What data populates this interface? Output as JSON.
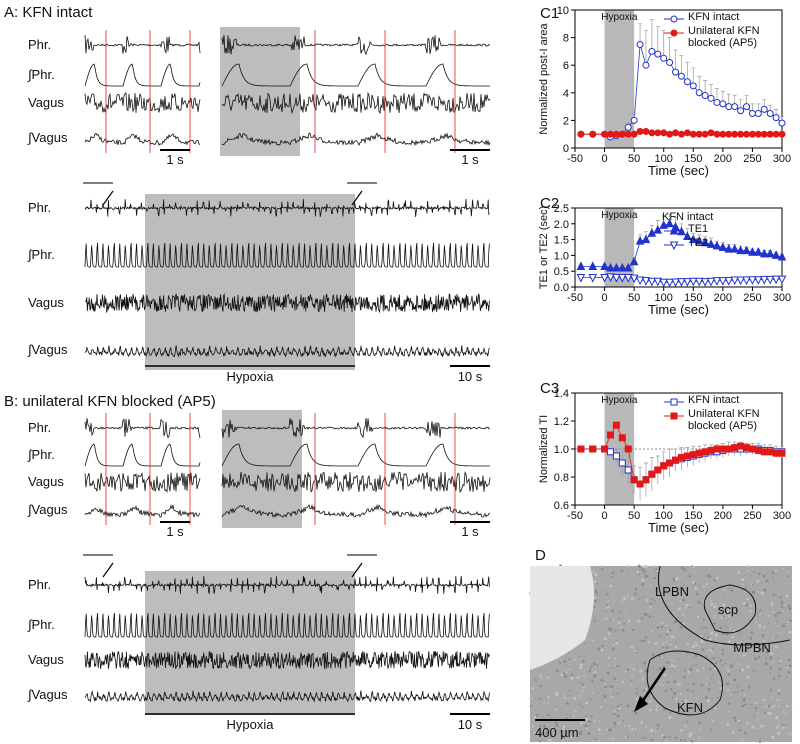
{
  "panel_a": {
    "title": "A: KFN intact",
    "traces": [
      "Phr.",
      "∫Phr.",
      "Vagus",
      "∫Vagus"
    ],
    "scale_short": "1 s",
    "scale_long": "10 s",
    "hypoxia": "Hypoxia"
  },
  "panel_b": {
    "title": "B: unilateral KFN blocked (AP5)",
    "traces": [
      "Phr.",
      "∫Phr.",
      "Vagus",
      "∫Vagus"
    ],
    "scale_short": "1 s",
    "scale_long": "10 s",
    "hypoxia": "Hypoxia"
  },
  "chart_data": [
    {
      "label": "C1",
      "type": "line",
      "xlabel": "Time (sec)",
      "ylabel": "Normalized post-I area",
      "shade_label": "Hypoxia",
      "shade": [
        0,
        50
      ],
      "legend": "upper right",
      "x": [
        -40,
        -20,
        0,
        10,
        20,
        30,
        40,
        50,
        60,
        70,
        80,
        90,
        100,
        110,
        120,
        130,
        140,
        150,
        160,
        170,
        180,
        190,
        200,
        210,
        220,
        230,
        240,
        250,
        260,
        270,
        280,
        290,
        300
      ],
      "series": [
        {
          "name": "KFN intact",
          "color": "#2233cc",
          "marker": "circle-open",
          "values": [
            1,
            1,
            1,
            0.8,
            0.9,
            1.0,
            1.5,
            2.0,
            7.5,
            6.0,
            7.0,
            6.8,
            6.5,
            6.2,
            5.5,
            5.2,
            4.8,
            4.5,
            4.0,
            3.8,
            3.6,
            3.3,
            3.2,
            3.0,
            3.0,
            2.7,
            3.0,
            2.5,
            2.5,
            2.8,
            2.5,
            2.2,
            1.8
          ],
          "errors": [
            0,
            0,
            0,
            0.1,
            0.1,
            0.2,
            0.3,
            0.5,
            1.5,
            2.5,
            2.3,
            2.0,
            2.0,
            1.8,
            1.6,
            1.5,
            1.4,
            1.3,
            1.2,
            1.1,
            1.0,
            1.0,
            0.9,
            0.9,
            0.8,
            0.8,
            0.8,
            0.7,
            0.7,
            0.7,
            0.6,
            0.6,
            0.5
          ]
        },
        {
          "name": "Unilateral KFN blocked (AP5)",
          "color": "#e01818",
          "marker": "circle-filled",
          "values": [
            1,
            1,
            1,
            1,
            1,
            1,
            1,
            1,
            1.2,
            1.2,
            1.1,
            1.1,
            1.1,
            1.0,
            1.1,
            1.0,
            1.1,
            1.0,
            1.0,
            1.0,
            1.1,
            1.0,
            1.0,
            1.0,
            1.0,
            1.0,
            1.0,
            1.0,
            1.0,
            1.0,
            1.0,
            1.0,
            1.0
          ]
        }
      ],
      "xlim": [
        -50,
        300
      ],
      "xticks": [
        -50,
        0,
        50,
        100,
        150,
        200,
        250,
        300
      ],
      "ylim": [
        0,
        10
      ],
      "yticks": [
        0,
        2,
        4,
        6,
        8,
        10
      ]
    },
    {
      "label": "C2",
      "type": "line",
      "xlabel": "Time (sec)",
      "ylabel": "TE1 or TE2 (sec)",
      "shade_label": "Hypoxia",
      "shade": [
        0,
        50
      ],
      "legend": "upper right",
      "legend_title": "KFN intact",
      "x": [
        -40,
        -20,
        0,
        10,
        20,
        30,
        40,
        50,
        60,
        70,
        80,
        90,
        100,
        110,
        120,
        130,
        140,
        150,
        160,
        170,
        180,
        190,
        200,
        210,
        220,
        230,
        240,
        250,
        260,
        270,
        280,
        290,
        300
      ],
      "series": [
        {
          "name": "TE1",
          "color": "#2233cc",
          "marker": "triangle-up-filled",
          "values": [
            0.65,
            0.65,
            0.65,
            0.6,
            0.6,
            0.6,
            0.6,
            0.8,
            1.45,
            1.5,
            1.7,
            1.8,
            1.95,
            2.0,
            1.9,
            1.75,
            1.6,
            1.5,
            1.45,
            1.4,
            1.35,
            1.3,
            1.25,
            1.2,
            1.2,
            1.15,
            1.15,
            1.1,
            1.1,
            1.05,
            1.05,
            1.0,
            0.95
          ],
          "errors": [
            0.05,
            0.05,
            0.05,
            0.05,
            0.05,
            0.05,
            0.05,
            0.1,
            0.2,
            0.25,
            0.25,
            0.3,
            0.3,
            0.3,
            0.3,
            0.25,
            0.25,
            0.2,
            0.2,
            0.2,
            0.2,
            0.15,
            0.15,
            0.15,
            0.15,
            0.15,
            0.1,
            0.1,
            0.1,
            0.1,
            0.1,
            0.1,
            0.1
          ]
        },
        {
          "name": "TE2",
          "color": "#2233cc",
          "marker": "triangle-down-open",
          "values": [
            0.3,
            0.3,
            0.3,
            0.32,
            0.3,
            0.3,
            0.3,
            0.28,
            0.22,
            0.2,
            0.18,
            0.18,
            0.15,
            0.15,
            0.16,
            0.17,
            0.17,
            0.18,
            0.18,
            0.17,
            0.18,
            0.2,
            0.2,
            0.2,
            0.22,
            0.22,
            0.22,
            0.23,
            0.23,
            0.24,
            0.24,
            0.25,
            0.25
          ]
        }
      ],
      "xlim": [
        -50,
        300
      ],
      "xticks": [
        -50,
        0,
        50,
        100,
        150,
        200,
        250,
        300
      ],
      "ylim": [
        0,
        2.5
      ],
      "yticks": [
        {
          "value": 0,
          "label": "0.0"
        },
        0.5,
        {
          "value": 1,
          "label": "1.0"
        },
        1.5,
        {
          "value": 2,
          "label": "2.0"
        },
        2.5
      ]
    },
    {
      "label": "C3",
      "type": "line",
      "xlabel": "Time (sec)",
      "ylabel": "Normalized TI",
      "shade_label": "Hypoxia",
      "shade": [
        0,
        50
      ],
      "legend": "upper right",
      "ref_line": 1,
      "x": [
        -40,
        -20,
        0,
        10,
        20,
        30,
        40,
        50,
        60,
        70,
        80,
        90,
        100,
        110,
        120,
        130,
        140,
        150,
        160,
        170,
        180,
        190,
        200,
        210,
        220,
        230,
        240,
        250,
        260,
        270,
        280,
        290,
        300
      ],
      "series": [
        {
          "name": "KFN intact",
          "color": "#2233cc",
          "marker": "square-open",
          "values": [
            1,
            1,
            1,
            0.98,
            0.95,
            0.9,
            0.85,
            0.78,
            0.75,
            0.78,
            0.82,
            0.85,
            0.88,
            0.9,
            0.92,
            0.93,
            0.94,
            0.95,
            0.96,
            0.97,
            0.98,
            0.98,
            0.99,
            1.0,
            1.0,
            1.0,
            1.0,
            1.0,
            1.0,
            0.99,
            0.99,
            0.98,
            0.98
          ],
          "errors": [
            0,
            0,
            0,
            0.02,
            0.05,
            0.08,
            0.1,
            0.1,
            0.12,
            0.12,
            0.12,
            0.1,
            0.1,
            0.1,
            0.08,
            0.08,
            0.07,
            0.07,
            0.06,
            0.06,
            0.05,
            0.05,
            0.05,
            0.05,
            0.05,
            0.05,
            0.04,
            0.04,
            0.04,
            0.04,
            0.04,
            0.04,
            0.04
          ]
        },
        {
          "name": "Unilateral KFN blocked (AP5)",
          "color": "#e01818",
          "marker": "square-filled",
          "values": [
            1,
            1,
            1,
            1.1,
            1.17,
            1.08,
            1.0,
            0.78,
            0.75,
            0.78,
            0.82,
            0.85,
            0.88,
            0.9,
            0.92,
            0.94,
            0.95,
            0.96,
            0.97,
            0.98,
            0.99,
            1.0,
            1.0,
            1.0,
            1.01,
            1.02,
            1.01,
            1.0,
            0.99,
            0.98,
            0.98,
            0.97,
            0.97
          ]
        }
      ],
      "xlim": [
        -50,
        300
      ],
      "xticks": [
        -50,
        0,
        50,
        100,
        150,
        200,
        250,
        300
      ],
      "ylim": [
        0.6,
        1.4
      ],
      "yticks": [
        0.6,
        0.8,
        {
          "value": 1,
          "label": "1.0"
        },
        1.2,
        1.4
      ]
    }
  ],
  "panel_d": {
    "label": "D",
    "regions": [
      "LPBN",
      "scp",
      "MPBN",
      "KFN"
    ],
    "scale": "400 µm"
  }
}
